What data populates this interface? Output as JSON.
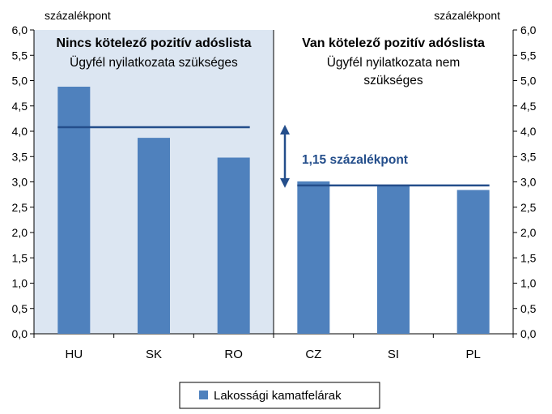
{
  "chart_data": {
    "type": "bar",
    "categories": [
      "HU",
      "SK",
      "RO",
      "CZ",
      "SI",
      "PL"
    ],
    "series": [
      {
        "name": "Lakossági kamatfelárak",
        "values": [
          4.88,
          3.87,
          3.48,
          3.01,
          2.93,
          2.84
        ],
        "color": "#4f81bd"
      }
    ],
    "ylim": [
      0,
      6
    ],
    "yticks": [
      "0,0",
      "0,5",
      "1,0",
      "1,5",
      "2,0",
      "2,5",
      "3,0",
      "3,5",
      "4,0",
      "4,5",
      "5,0",
      "5,5",
      "6,0"
    ],
    "ylabel_left": "százalékpont",
    "ylabel_right": "százalékpont",
    "panels": [
      {
        "title": "Nincs kötelező pozitív adóslista",
        "subtitle_lines": [
          "Ügyfél nyilatkozata szükséges"
        ],
        "shaded": true,
        "shade_color": "#dce6f2",
        "categories": [
          "HU",
          "SK",
          "RO"
        ],
        "average": 4.08
      },
      {
        "title": "Van kötelező pozitív adóslista",
        "subtitle_lines": [
          "Ügyfél nyilatkozata nem",
          "szükséges"
        ],
        "shaded": false,
        "categories": [
          "CZ",
          "SI",
          "PL"
        ],
        "average": 2.93
      }
    ],
    "average_line_color": "#244e8b",
    "annotation": {
      "text": "1,15 százalékpont",
      "from": 2.93,
      "to": 4.08
    },
    "legend": {
      "position": "bottom"
    },
    "grid": false
  }
}
